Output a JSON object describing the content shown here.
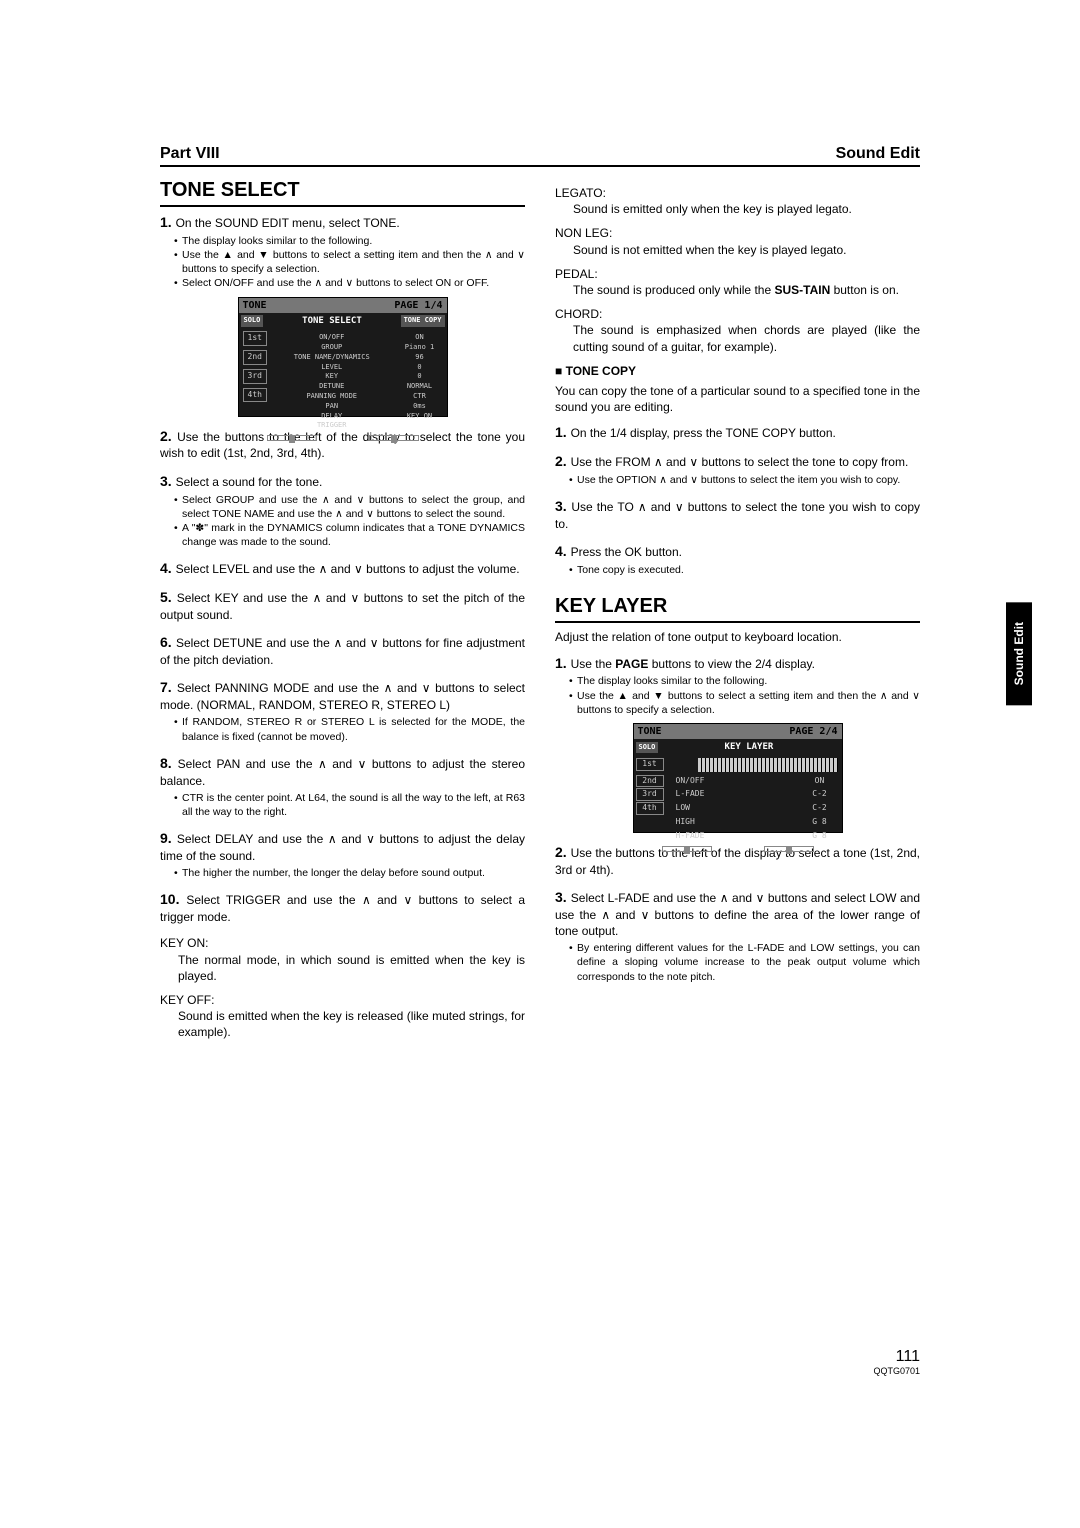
{
  "header": {
    "left": "Part VIII",
    "right": "Sound Edit"
  },
  "side_tab": "Sound Edit",
  "page_number": "111",
  "doc_code": "QQTG0701",
  "left_col": {
    "h1": "TONE SELECT",
    "steps": [
      {
        "t": "On the SOUND EDIT menu, select TONE.",
        "sub": [
          "The display looks similar to the following.",
          "Use the ▲ and ▼ buttons to select a setting item and then the ∧ and ∨ buttons to specify a selection.",
          "Select ON/OFF and use the ∧ and ∨ buttons to select ON or OFF."
        ]
      },
      {
        "t": "Use the buttons to the left of the display to select the tone you wish to edit (1st, 2nd, 3rd, 4th)."
      },
      {
        "t": "Select a sound for the tone.",
        "sub": [
          "Select GROUP and use the ∧ and ∨ buttons to select the group, and select TONE NAME and use the ∧ and ∨ buttons to select the sound.",
          "A \"✽\" mark in the DYNAMICS column indicates that a TONE DYNAMICS change was made to the sound."
        ]
      },
      {
        "t": "Select LEVEL and use the ∧ and ∨ buttons to adjust the volume."
      },
      {
        "t": "Select KEY and use the ∧ and ∨ buttons to set the pitch of the output sound."
      },
      {
        "t": "Select DETUNE and use the ∧ and ∨ buttons for fine adjustment of the pitch deviation."
      },
      {
        "t": "Select PANNING MODE and use the ∧ and ∨ buttons to select mode. (NORMAL, RANDOM, STEREO R, STEREO L)",
        "sub": [
          "If RANDOM, STEREO R or STEREO L is selected for the MODE, the balance is fixed (cannot be moved)."
        ]
      },
      {
        "t": "Select PAN and use the ∧ and ∨ buttons to adjust the stereo balance.",
        "sub": [
          "CTR is the center point. At L64, the sound is all the way to the left, at R63 all the way to the right."
        ]
      },
      {
        "t": "Select DELAY and use the ∧ and ∨ buttons to adjust the delay time of the sound.",
        "sub": [
          "The higher the number, the longer the delay before sound output."
        ]
      },
      {
        "t": "Select TRIGGER and use the ∧ and ∨ buttons to select a trigger mode."
      }
    ],
    "defs": [
      {
        "k": "KEY ON:",
        "v": "The normal mode, in which sound is emitted when the key is played."
      },
      {
        "k": "KEY OFF:",
        "v": "Sound is emitted when the key is released (like muted strings, for example)."
      }
    ],
    "lcd1": {
      "hdr_l": "TONE",
      "hdr_r": "PAGE 1/4",
      "title": "TONE SELECT",
      "pill_l": "SOLO",
      "pill_r": "TONE COPY",
      "side": [
        "1st",
        "2nd",
        "3rd",
        "4th"
      ],
      "mid": [
        "ON/OFF",
        "GROUP",
        "TONE NAME/DYNAMICS",
        "LEVEL",
        "KEY",
        "DETUNE",
        "PANNING MODE",
        "PAN",
        "DELAY",
        "TRIGGER"
      ],
      "rt": [
        "ON",
        "Piano 1",
        "96",
        "0",
        "0",
        "NORMAL",
        "CTR",
        "0ms",
        "KEY ON"
      ]
    }
  },
  "right_col": {
    "defs": [
      {
        "k": "LEGATO:",
        "v": "Sound is emitted only when the key is played legato."
      },
      {
        "k": "NON LEG:",
        "v": "Sound is not emitted when the key is played legato."
      },
      {
        "k": "PEDAL:",
        "v": "The sound is produced only while the SUS-TAIN button is on."
      },
      {
        "k": "CHORD:",
        "v": "The sound is emphasized when chords are played (like the cutting sound of a guitar, for example)."
      }
    ],
    "tone_copy": {
      "h": "TONE COPY",
      "intro": "You can copy the tone of a particular sound to a specified tone in the sound you are editing.",
      "steps": [
        {
          "t": "On the 1/4 display, press the TONE COPY button."
        },
        {
          "t": "Use the FROM ∧ and ∨ buttons to select the tone to copy from.",
          "sub": [
            "Use the OPTION ∧ and ∨ buttons to select the item you wish to copy."
          ]
        },
        {
          "t": "Use the TO ∧ and ∨ buttons to select the tone you wish to copy to."
        },
        {
          "t": "Press the OK button.",
          "sub": [
            "Tone copy is executed."
          ]
        }
      ]
    },
    "key_layer": {
      "h": "KEY LAYER",
      "intro": "Adjust the relation of tone output to keyboard location.",
      "steps": [
        {
          "t": "Use the PAGE buttons to view the 2/4 display.",
          "sub": [
            "The display looks similar to the following.",
            "Use the ▲ and ▼ buttons to select a setting item and then the ∧ and ∨ buttons to specify a selection."
          ]
        },
        {
          "t": "Use the buttons to the left of the display to select a tone (1st, 2nd, 3rd or 4th)."
        },
        {
          "t": "Select L-FADE and use the ∧ and ∨ buttons and select LOW and use the ∧ and ∨ buttons to define the area of the lower range of tone output.",
          "sub": [
            "By entering different values for the L-FADE and LOW settings, you can define a sloping volume increase to the peak output volume which corresponds to the note pitch."
          ]
        }
      ]
    },
    "lcd2": {
      "hdr_l": "TONE",
      "hdr_r": "PAGE 2/4",
      "title": "KEY LAYER",
      "pill_l": "SOLO",
      "side": [
        "1st",
        "2nd",
        "3rd",
        "4th"
      ],
      "rows": [
        {
          "k": "ON/OFF",
          "v": "ON"
        },
        {
          "k": "L-FADE",
          "v": "C-2"
        },
        {
          "k": "LOW",
          "v": "C-2"
        },
        {
          "k": "HIGH",
          "v": "G 8"
        },
        {
          "k": "H-FADE",
          "v": "G 8"
        }
      ]
    }
  }
}
